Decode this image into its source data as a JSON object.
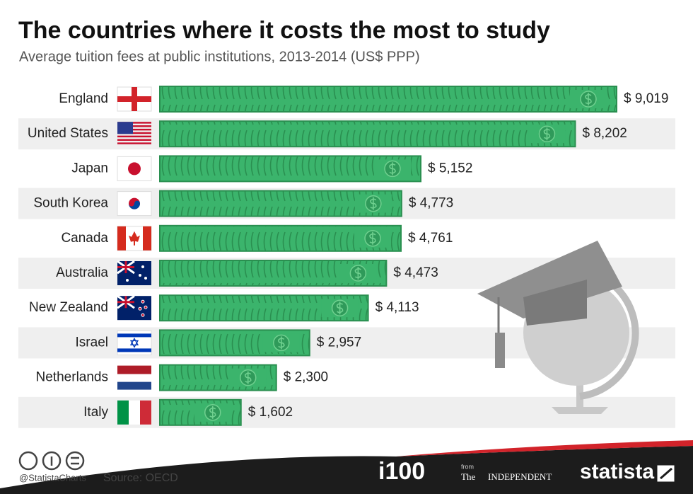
{
  "chart_data": {
    "type": "bar",
    "orientation": "horizontal",
    "title": "The countries where it costs the most to study",
    "subtitle": "Average tuition fees at public institutions, 2013-2014 (US$ PPP)",
    "categories": [
      "England",
      "United States",
      "Japan",
      "South Korea",
      "Canada",
      "Australia",
      "New Zealand",
      "Israel",
      "Netherlands",
      "Italy"
    ],
    "values": [
      9019,
      8202,
      5152,
      4773,
      4761,
      4473,
      4113,
      2957,
      2300,
      1602
    ],
    "value_labels": [
      "$ 9,019",
      "$ 8,202",
      "$ 5,152",
      "$ 4,773",
      "$ 4,761",
      "$ 4,473",
      "$ 4,113",
      "$ 2,957",
      "$ 2,300",
      "$ 1,602"
    ],
    "color": "#3bb46c",
    "credit": "@StatistaCharts",
    "source": "Source: OECD",
    "footer_logos": [
      "i100",
      "from",
      "The",
      "INDEPENDENT",
      "statista"
    ]
  }
}
